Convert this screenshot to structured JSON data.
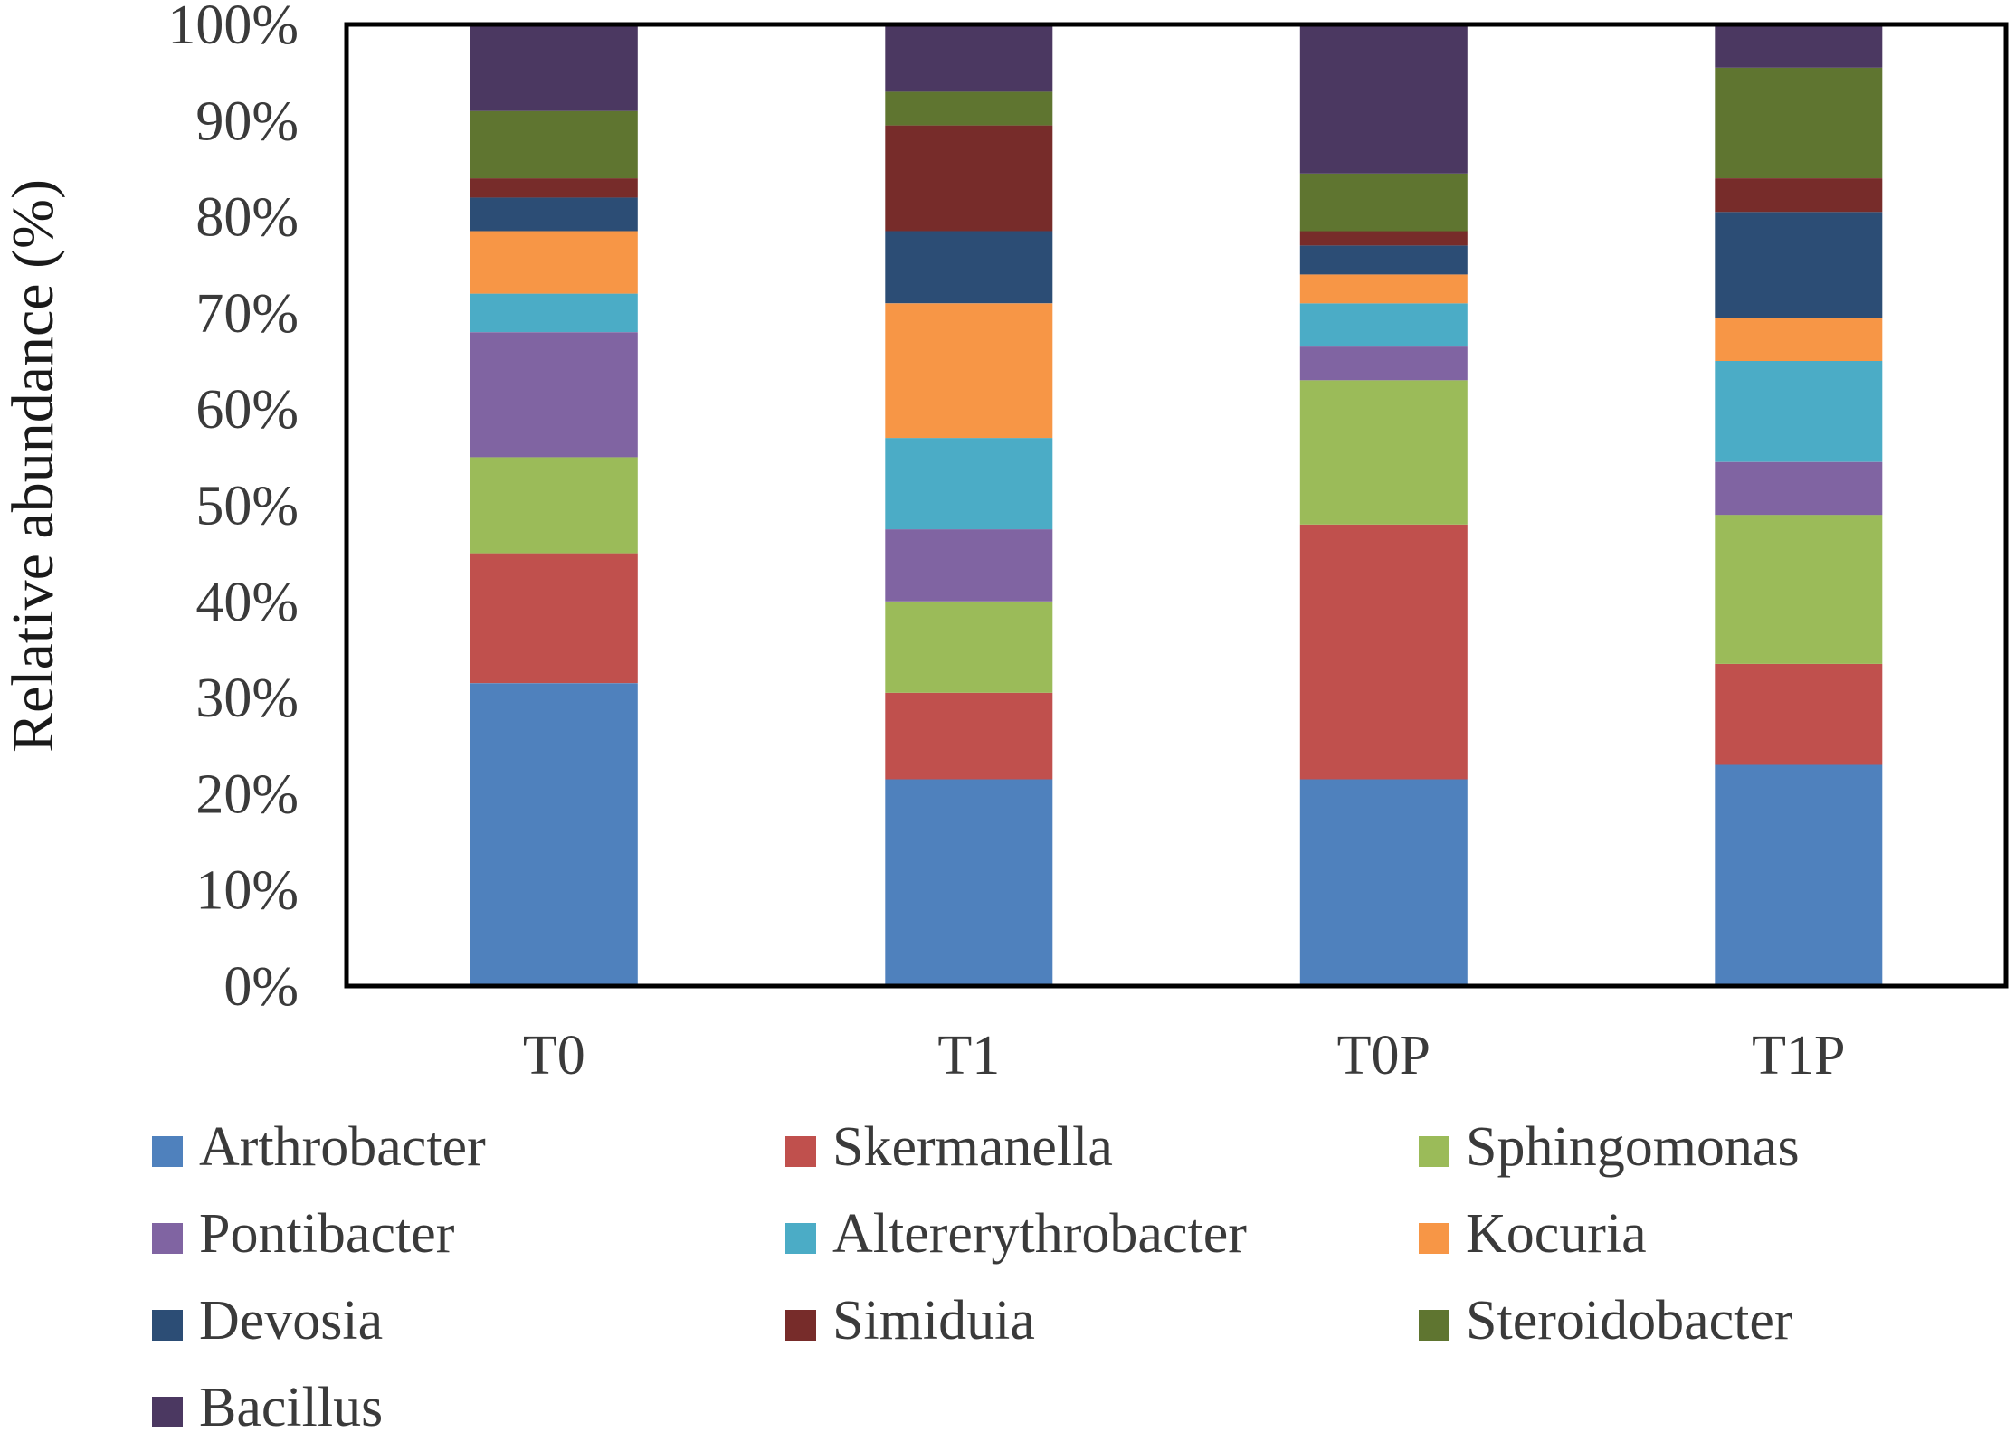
{
  "chart_data": {
    "type": "bar",
    "stacked": true,
    "percent": true,
    "title": "",
    "xlabel": "",
    "ylabel": "Relative abundance (%)",
    "ylim": [
      0,
      100
    ],
    "yticks": [
      "0%",
      "10%",
      "20%",
      "30%",
      "40%",
      "50%",
      "60%",
      "70%",
      "80%",
      "90%",
      "100%"
    ],
    "categories": [
      "T0",
      "T1",
      "T0P",
      "T1P"
    ],
    "series": [
      {
        "name": "Arthrobacter",
        "color": "#4f81bd",
        "values": [
          31.5,
          21.5,
          21.5,
          23.0
        ]
      },
      {
        "name": "Skermanella",
        "color": "#c0504d",
        "values": [
          13.5,
          9.0,
          26.5,
          10.5
        ]
      },
      {
        "name": "Sphingomonas",
        "color": "#9bbb59",
        "values": [
          10.0,
          9.5,
          15.0,
          15.5
        ]
      },
      {
        "name": "Pontibacter",
        "color": "#8064a2",
        "values": [
          13.0,
          7.5,
          3.5,
          5.5
        ]
      },
      {
        "name": "Altererythrobacter",
        "color": "#4bacc6",
        "values": [
          4.0,
          9.5,
          4.5,
          10.5
        ]
      },
      {
        "name": "Kocuria",
        "color": "#f79646",
        "values": [
          6.5,
          14.0,
          3.0,
          4.5
        ]
      },
      {
        "name": "Devosia",
        "color": "#2c4d75",
        "values": [
          3.5,
          7.5,
          3.0,
          11.0
        ]
      },
      {
        "name": "Simiduia",
        "color": "#772c2a",
        "values": [
          2.0,
          11.0,
          1.5,
          3.5
        ]
      },
      {
        "name": "Steroidobacter",
        "color": "#5f7530",
        "values": [
          7.0,
          3.5,
          6.0,
          11.5
        ]
      },
      {
        "name": "Bacillus",
        "color": "#4b3861",
        "values": [
          9.0,
          7.0,
          15.5,
          4.5
        ]
      }
    ],
    "legend_position": "bottom"
  }
}
